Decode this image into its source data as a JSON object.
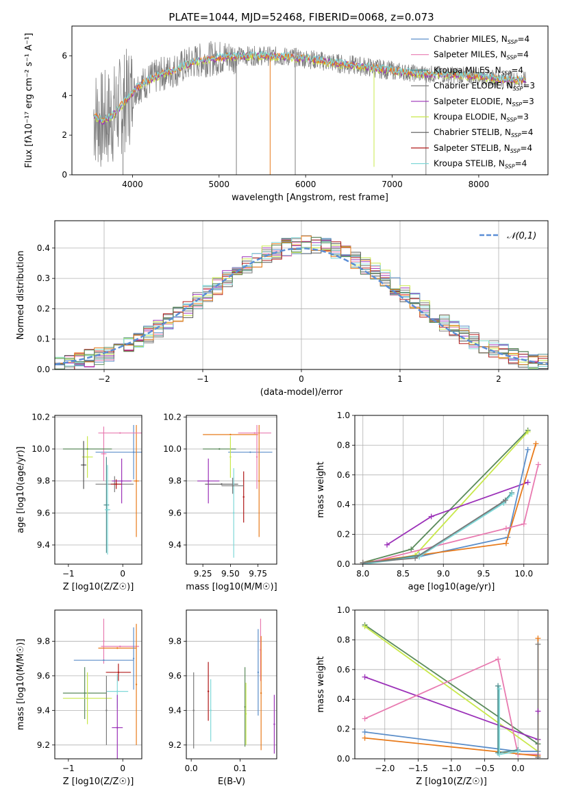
{
  "title": "PLATE=1044, MJD=52468, FIBERID=0068, z=0.073",
  "colors": {
    "chabrier_miles": "#5b8ec9",
    "salpeter_miles": "#e87ab0",
    "kroupa_miles": "#4e8e8e",
    "chabrier_elodie": "#7a7a7a",
    "salpeter_elodie": "#9b30b8",
    "kroupa_elodie": "#c8e84a",
    "chabrier_stelib": "#555555",
    "salpeter_stelib": "#b01818",
    "kroupa_stelib": "#7fd8d8",
    "spectrum": "#7f7f7f",
    "orange": "#e87a1a",
    "darkgreen": "#5a8a5a",
    "normal": "#5b8ed6"
  },
  "chart_data": [
    {
      "type": "line",
      "panel": "spectrum",
      "xlabel": "wavelength [Angstrom, rest frame]",
      "ylabel": "Flux [fλ10⁻¹⁷ erg cm⁻² s⁻¹ A⁻¹]",
      "xlim": [
        3300,
        8800
      ],
      "ylim": [
        0,
        7.5
      ],
      "xticks": [
        4000,
        5000,
        6000,
        7000,
        8000
      ],
      "yticks": [
        0,
        2,
        4,
        6
      ],
      "legend": [
        "Chabrier MILES, N_SSP=4",
        "Salpeter MILES, N_SSP=4",
        "Kroupa MILES, N_SSP=4",
        "Chabrier ELODIE, N_SSP=3",
        "Salpeter ELODIE, N_SSP=3",
        "Kroupa ELODIE, N_SSP=3",
        "Chabrier STELIB, N_SSP=4",
        "Salpeter STELIB, N_SSP=4",
        "Kroupa STELIB, N_SSP=4"
      ],
      "continuum": [
        [
          3550,
          3.0
        ],
        [
          3650,
          2.7
        ],
        [
          3750,
          2.9
        ],
        [
          3850,
          3.4
        ],
        [
          3950,
          3.9
        ],
        [
          4050,
          4.4
        ],
        [
          4200,
          4.8
        ],
        [
          4350,
          5.1
        ],
        [
          4500,
          5.3
        ],
        [
          4700,
          5.7
        ],
        [
          4900,
          5.85
        ],
        [
          5100,
          5.95
        ],
        [
          5300,
          6.0
        ],
        [
          5500,
          6.0
        ],
        [
          5800,
          5.95
        ],
        [
          6100,
          5.8
        ],
        [
          6400,
          5.6
        ],
        [
          6700,
          5.45
        ],
        [
          7000,
          5.25
        ],
        [
          7300,
          5.1
        ],
        [
          7600,
          5.05
        ],
        [
          7900,
          5.0
        ],
        [
          8200,
          4.85
        ],
        [
          8550,
          4.75
        ]
      ],
      "downspikes": [
        [
          5200,
          0.0
        ],
        [
          5590,
          0.0
        ],
        [
          5880,
          0.0
        ],
        [
          6790,
          0.4
        ],
        [
          7390,
          0.0
        ],
        [
          3890,
          0.0
        ]
      ]
    },
    {
      "type": "bar",
      "panel": "residual-histogram",
      "xlabel": "(data-model)/error",
      "ylabel": "Normed distribution",
      "xlim": [
        -2.5,
        2.5
      ],
      "ylim": [
        0,
        0.49
      ],
      "xticks": [
        -2,
        -1,
        0,
        1,
        2
      ],
      "yticks": [
        0.0,
        0.1,
        0.2,
        0.3,
        0.4
      ],
      "legend": [
        "𝒩(0,1)"
      ],
      "bin_width": 0.1
    },
    {
      "type": "scatter",
      "panel": "age-vs-Z",
      "xlabel": "Z [log10(Z/Z☉)]",
      "ylabel": "age  [log10(age/yr)]",
      "xlim": [
        -1.25,
        0.35
      ],
      "ylim": [
        9.28,
        10.21
      ],
      "xticks": [
        -1,
        0
      ],
      "yticks": [
        9.4,
        9.6,
        9.8,
        10.0,
        10.2
      ],
      "points": [
        {
          "c": "chabrier_miles",
          "x": 0.2,
          "y": 9.98,
          "xe": 0.7,
          "ye": 0.17
        },
        {
          "c": "salpeter_miles",
          "x": -0.35,
          "y": 9.97,
          "xe": 0.05,
          "ye": 0.17
        },
        {
          "c": "kroupa_miles",
          "x": -0.3,
          "y": 9.65,
          "xe": 0.05,
          "ye": 0.3
        },
        {
          "c": "chabrier_elodie",
          "x": -0.15,
          "y": 9.78,
          "xe": 0.35,
          "ye": 0.05
        },
        {
          "c": "salpeter_elodie",
          "x": -0.02,
          "y": 9.8,
          "xe": 0.18,
          "ye": 0.14
        },
        {
          "c": "kroupa_elodie",
          "x": -0.65,
          "y": 9.95,
          "xe": 0.1,
          "ye": 0.13
        },
        {
          "c": "chabrier_stelib",
          "x": -0.72,
          "y": 9.9,
          "xe": 0.05,
          "ye": 0.15
        },
        {
          "c": "salpeter_stelib",
          "x": -0.12,
          "y": 9.78,
          "xe": 0.1,
          "ye": 0.03
        },
        {
          "c": "kroupa_stelib",
          "x": -0.28,
          "y": 9.62,
          "xe": 0.05,
          "ye": 0.28
        },
        {
          "c": "orange",
          "x": 0.25,
          "y": 9.8,
          "xe": 0.05,
          "ye": 0.35
        },
        {
          "c": "salpeter_miles",
          "x": -0.05,
          "y": 10.1,
          "xe": 0.4,
          "ye": 0.0
        },
        {
          "c": "darkgreen",
          "x": -0.65,
          "y": 10.0,
          "xe": 0.45,
          "ye": 0.0
        }
      ]
    },
    {
      "type": "scatter",
      "panel": "age-vs-mass",
      "xlabel": "mass [log10(M/M☉)]",
      "ylabel": "",
      "xlim": [
        9.1,
        9.92
      ],
      "ylim": [
        9.28,
        10.21
      ],
      "xticks": [
        9.25,
        9.5,
        9.75
      ],
      "yticks": [
        9.4,
        9.6,
        9.8,
        10.0,
        10.2
      ],
      "points": [
        {
          "c": "chabrier_miles",
          "x": 9.68,
          "y": 9.98,
          "xe": 0.2,
          "ye": 0.0
        },
        {
          "c": "salpeter_miles",
          "x": 9.72,
          "y": 10.1,
          "xe": 0.15,
          "ye": 0.0
        },
        {
          "c": "orange",
          "x": 9.5,
          "y": 10.09,
          "xe": 0.25,
          "ye": 0.0
        },
        {
          "c": "orange",
          "x": 9.76,
          "y": 9.8,
          "xe": 0.0,
          "ye": 0.35
        },
        {
          "c": "salpeter_miles",
          "x": 9.74,
          "y": 9.95,
          "xe": 0.0,
          "ye": 0.2
        },
        {
          "c": "darkgreen",
          "x": 9.4,
          "y": 10.0,
          "xe": 0.15,
          "ye": 0.0
        },
        {
          "c": "kroupa_elodie",
          "x": 9.5,
          "y": 9.95,
          "xe": 0.0,
          "ye": 0.13
        },
        {
          "c": "chabrier_stelib",
          "x": 9.42,
          "y": 9.78,
          "xe": 0.15,
          "ye": 0.0
        },
        {
          "c": "salpeter_elodie",
          "x": 9.3,
          "y": 9.8,
          "xe": 0.1,
          "ye": 0.14
        },
        {
          "c": "salpeter_stelib",
          "x": 9.62,
          "y": 9.7,
          "xe": 0.0,
          "ye": 0.16
        },
        {
          "c": "kroupa_stelib",
          "x": 9.53,
          "y": 9.6,
          "xe": 0.0,
          "ye": 0.28
        },
        {
          "c": "chabrier_elodie",
          "x": 9.52,
          "y": 9.77,
          "xe": 0.1,
          "ye": 0.05
        }
      ]
    },
    {
      "type": "line",
      "panel": "mass-weight-vs-age",
      "xlabel": "age  [log10(age/yr)]",
      "ylabel": "mass weight",
      "xlim": [
        7.9,
        10.3
      ],
      "ylim": [
        0,
        1.0
      ],
      "xticks": [
        8.0,
        8.5,
        9.0,
        9.5,
        10.0
      ],
      "yticks": [
        0.0,
        0.2,
        0.4,
        0.6,
        0.8,
        1.0
      ],
      "series": [
        {
          "c": "darkgreen",
          "x": [
            8.0,
            8.6,
            10.05
          ],
          "y": [
            0.01,
            0.1,
            0.9
          ]
        },
        {
          "c": "kroupa_elodie",
          "x": [
            8.0,
            8.65,
            10.05
          ],
          "y": [
            0.0,
            0.06,
            0.89
          ]
        },
        {
          "c": "salpeter_elodie",
          "x": [
            8.3,
            8.85,
            10.05
          ],
          "y": [
            0.13,
            0.32,
            0.55
          ]
        },
        {
          "c": "chabrier_miles",
          "x": [
            8.0,
            8.7,
            9.8,
            10.05
          ],
          "y": [
            0.01,
            0.05,
            0.18,
            0.77
          ]
        },
        {
          "c": "orange",
          "x": [
            8.0,
            9.78,
            10.15
          ],
          "y": [
            0.01,
            0.14,
            0.81
          ]
        },
        {
          "c": "salpeter_miles",
          "x": [
            8.0,
            9.78,
            10.0,
            10.18
          ],
          "y": [
            0.0,
            0.24,
            0.27,
            0.67
          ]
        },
        {
          "c": "kroupa_miles",
          "x": [
            8.0,
            8.7,
            9.75,
            9.85
          ],
          "y": [
            0.0,
            0.06,
            0.42,
            0.48
          ]
        },
        {
          "c": "kroupa_stelib",
          "x": [
            8.0,
            8.7,
            9.75,
            9.85
          ],
          "y": [
            0.0,
            0.05,
            0.41,
            0.47
          ]
        },
        {
          "c": "chabrier_elodie",
          "x": [
            8.0,
            8.65,
            9.77
          ],
          "y": [
            0.01,
            0.04,
            0.43
          ]
        }
      ]
    },
    {
      "type": "scatter",
      "panel": "mass-vs-Z",
      "xlabel": "Z [log10(Z/Z☉)]",
      "ylabel": "mass [log10(M/M☉)]",
      "xlim": [
        -1.25,
        0.35
      ],
      "ylim": [
        9.12,
        9.98
      ],
      "xticks": [
        -1,
        0
      ],
      "yticks": [
        9.2,
        9.4,
        9.6,
        9.8
      ],
      "points": [
        {
          "c": "salpeter_miles",
          "x": -0.35,
          "y": 9.8,
          "xe": 0.0,
          "ye": 0.13
        },
        {
          "c": "salpeter_miles",
          "x": -0.05,
          "y": 9.77,
          "xe": 0.35,
          "ye": 0.0
        },
        {
          "c": "orange",
          "x": -0.1,
          "y": 9.76,
          "xe": 0.35,
          "ye": 0.0
        },
        {
          "c": "orange",
          "x": 0.25,
          "y": 9.55,
          "xe": 0.0,
          "ye": 0.35
        },
        {
          "c": "chabrier_miles",
          "x": -0.35,
          "y": 9.69,
          "xe": 0.55,
          "ye": 0.0
        },
        {
          "c": "chabrier_miles",
          "x": 0.2,
          "y": 9.7,
          "xe": 0.0,
          "ye": 0.18
        },
        {
          "c": "darkgreen",
          "x": -0.7,
          "y": 9.5,
          "xe": 0.4,
          "ye": 0.15
        },
        {
          "c": "kroupa_elodie",
          "x": -0.65,
          "y": 9.47,
          "xe": 0.45,
          "ye": 0.15
        },
        {
          "c": "salpeter_stelib",
          "x": -0.08,
          "y": 9.62,
          "xe": 0.23,
          "ye": 0.05
        },
        {
          "c": "kroupa_stelib",
          "x": -0.1,
          "y": 9.51,
          "xe": 0.2,
          "ye": 0.1
        },
        {
          "c": "salpeter_elodie",
          "x": -0.1,
          "y": 9.3,
          "xe": 0.1,
          "ye": 0.19
        },
        {
          "c": "chabrier_elodie",
          "x": -0.3,
          "y": 9.4,
          "xe": 0.0,
          "ye": 0.2
        }
      ]
    },
    {
      "type": "scatter",
      "panel": "mass-vs-EBV",
      "xlabel": "E(B-V)",
      "ylabel": "",
      "xlim": [
        -0.01,
        0.175
      ],
      "ylim": [
        9.12,
        9.98
      ],
      "xticks": [
        0.0,
        0.1
      ],
      "yticks": [
        9.2,
        9.4,
        9.6,
        9.8
      ],
      "points": [
        {
          "c": "chabrier_elodie",
          "x": 0.005,
          "y": 9.4,
          "xe": 0.0,
          "ye": 0.22
        },
        {
          "c": "salpeter_stelib",
          "x": 0.035,
          "y": 9.51,
          "xe": 0.0,
          "ye": 0.17
        },
        {
          "c": "kroupa_stelib",
          "x": 0.04,
          "y": 9.4,
          "xe": 0.0,
          "ye": 0.18
        },
        {
          "c": "darkgreen",
          "x": 0.11,
          "y": 9.42,
          "xe": 0.0,
          "ye": 0.23
        },
        {
          "c": "kroupa_elodie",
          "x": 0.112,
          "y": 9.38,
          "xe": 0.0,
          "ye": 0.18
        },
        {
          "c": "chabrier_miles",
          "x": 0.137,
          "y": 9.62,
          "xe": 0.0,
          "ye": 0.25
        },
        {
          "c": "salpeter_miles",
          "x": 0.142,
          "y": 9.75,
          "xe": 0.0,
          "ye": 0.18
        },
        {
          "c": "orange",
          "x": 0.143,
          "y": 9.5,
          "xe": 0.0,
          "ye": 0.33
        },
        {
          "c": "salpeter_elodie",
          "x": 0.17,
          "y": 9.32,
          "xe": 0.0,
          "ye": 0.17
        }
      ]
    },
    {
      "type": "line",
      "panel": "mass-weight-vs-Z",
      "xlabel": "Z [log10(Z/Z☉)]",
      "ylabel": "mass weight",
      "xlim": [
        -2.45,
        0.45
      ],
      "ylim": [
        0,
        1.0
      ],
      "xticks": [
        -2.0,
        -1.5,
        -1.0,
        -0.5,
        0.0
      ],
      "yticks": [
        0.0,
        0.2,
        0.4,
        0.6,
        0.8,
        1.0
      ],
      "series": [
        {
          "c": "darkgreen",
          "x": [
            -2.3,
            0.3
          ],
          "y": [
            0.9,
            0.1
          ]
        },
        {
          "c": "kroupa_elodie",
          "x": [
            -2.3,
            0.3
          ],
          "y": [
            0.89,
            0.05
          ]
        },
        {
          "c": "salpeter_elodie",
          "x": [
            -2.3,
            0.3
          ],
          "y": [
            0.55,
            0.13
          ]
        },
        {
          "c": "salpeter_miles",
          "x": [
            -2.3,
            -0.3,
            0.0,
            0.3
          ],
          "y": [
            0.27,
            0.67,
            0.03,
            0.03
          ]
        },
        {
          "c": "chabrier_miles",
          "x": [
            -2.3,
            0.0,
            0.3
          ],
          "y": [
            0.18,
            0.05,
            0.05
          ]
        },
        {
          "c": "orange",
          "x": [
            -2.3,
            0.3,
            0.3
          ],
          "y": [
            0.14,
            0.02,
            0.81
          ]
        },
        {
          "c": "kroupa_miles",
          "x": [
            -0.3,
            -0.3,
            0.0
          ],
          "y": [
            0.49,
            0.04,
            0.06
          ]
        },
        {
          "c": "kroupa_stelib",
          "x": [
            -0.28,
            -0.28,
            0.0
          ],
          "y": [
            0.47,
            0.03,
            0.05
          ]
        },
        {
          "c": "chabrier_elodie",
          "x": [
            0.3,
            0.3
          ],
          "y": [
            0.77,
            0.01
          ]
        },
        {
          "c": "salpeter_elodie",
          "x": [
            0.3
          ],
          "y": [
            0.32
          ]
        }
      ]
    }
  ]
}
